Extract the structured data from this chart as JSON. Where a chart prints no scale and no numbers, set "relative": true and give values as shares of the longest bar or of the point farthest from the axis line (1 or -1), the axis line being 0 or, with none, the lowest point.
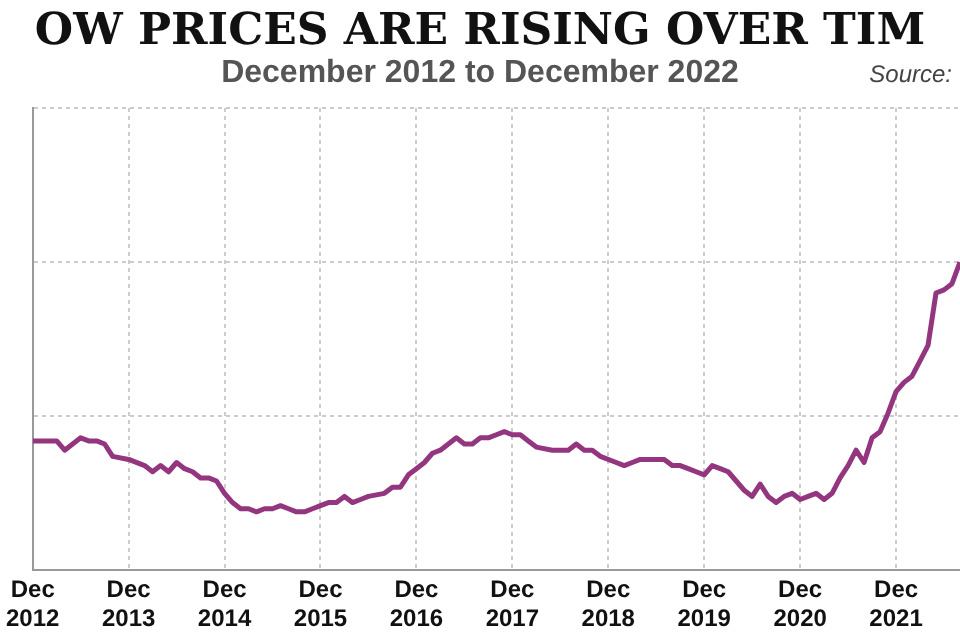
{
  "chart_data": {
    "type": "line",
    "title": "OW PRICES ARE RISING OVER TIM",
    "subtitle": "December 2012 to December 2022",
    "annotations": [
      "Source:"
    ],
    "relative": true,
    "grid": true,
    "line_style": "solid",
    "xlim": [
      "2012-12",
      "2022-08"
    ],
    "xticks": [
      {
        "value": "2012-12",
        "label": "Dec 2012"
      },
      {
        "value": "2013-12",
        "label": "Dec 2013"
      },
      {
        "value": "2014-12",
        "label": "Dec 2014"
      },
      {
        "value": "2015-12",
        "label": "Dec 2015"
      },
      {
        "value": "2016-12",
        "label": "Dec 2016"
      },
      {
        "value": "2017-12",
        "label": "Dec 2017"
      },
      {
        "value": "2018-12",
        "label": "Dec 2018"
      },
      {
        "value": "2019-12",
        "label": "Dec 2019"
      },
      {
        "value": "2020-12",
        "label": "Dec 2020"
      },
      {
        "value": "2021-12",
        "label": "Dec 2021"
      }
    ],
    "series": [
      {
        "color": "#93367f",
        "x": [
          "2012-12",
          "2013-01",
          "2013-03",
          "2013-04",
          "2013-05",
          "2013-06",
          "2013-07",
          "2013-08",
          "2013-09",
          "2013-10",
          "2013-12",
          "2014-02",
          "2014-03",
          "2014-04",
          "2014-05",
          "2014-06",
          "2014-07",
          "2014-08",
          "2014-09",
          "2014-10",
          "2014-11",
          "2014-12",
          "2015-01",
          "2015-02",
          "2015-03",
          "2015-04",
          "2015-05",
          "2015-06",
          "2015-07",
          "2015-08",
          "2015-09",
          "2015-10",
          "2015-11",
          "2015-12",
          "2016-01",
          "2016-02",
          "2016-03",
          "2016-04",
          "2016-05",
          "2016-06",
          "2016-08",
          "2016-09",
          "2016-10",
          "2016-11",
          "2016-12",
          "2017-01",
          "2017-02",
          "2017-03",
          "2017-04",
          "2017-05",
          "2017-06",
          "2017-07",
          "2017-08",
          "2017-09",
          "2017-10",
          "2017-11",
          "2017-12",
          "2018-01",
          "2018-02",
          "2018-03",
          "2018-05",
          "2018-07",
          "2018-08",
          "2018-09",
          "2018-10",
          "2018-11",
          "2019-01",
          "2019-02",
          "2019-03",
          "2019-04",
          "2019-05",
          "2019-07",
          "2019-08",
          "2019-09",
          "2019-10",
          "2019-11",
          "2019-12",
          "2020-01",
          "2020-02",
          "2020-03",
          "2020-04",
          "2020-05",
          "2020-06",
          "2020-07",
          "2020-08",
          "2020-09",
          "2020-10",
          "2020-11",
          "2020-12",
          "2021-01",
          "2021-02",
          "2021-03",
          "2021-04",
          "2021-05",
          "2021-06",
          "2021-07",
          "2021-08",
          "2021-09",
          "2021-10",
          "2021-11",
          "2021-12",
          "2022-01",
          "2022-02",
          "2022-03",
          "2022-04",
          "2022-05",
          "2022-06",
          "2022-07",
          "2022-08"
        ],
        "values": [
          0.42,
          0.42,
          0.42,
          0.39,
          0.41,
          0.43,
          0.42,
          0.42,
          0.41,
          0.37,
          0.36,
          0.34,
          0.32,
          0.34,
          0.32,
          0.35,
          0.33,
          0.32,
          0.3,
          0.3,
          0.29,
          0.25,
          0.22,
          0.2,
          0.2,
          0.19,
          0.2,
          0.2,
          0.21,
          0.2,
          0.19,
          0.19,
          0.2,
          0.21,
          0.22,
          0.22,
          0.24,
          0.22,
          0.23,
          0.24,
          0.25,
          0.27,
          0.27,
          0.31,
          0.33,
          0.35,
          0.38,
          0.39,
          0.41,
          0.43,
          0.41,
          0.41,
          0.43,
          0.43,
          0.44,
          0.45,
          0.44,
          0.44,
          0.42,
          0.4,
          0.39,
          0.39,
          0.41,
          0.39,
          0.39,
          0.37,
          0.35,
          0.34,
          0.35,
          0.36,
          0.36,
          0.36,
          0.34,
          0.34,
          0.33,
          0.32,
          0.31,
          0.34,
          0.33,
          0.32,
          0.29,
          0.26,
          0.24,
          0.28,
          0.24,
          0.22,
          0.24,
          0.25,
          0.23,
          0.24,
          0.25,
          0.23,
          0.25,
          0.3,
          0.34,
          0.39,
          0.35,
          0.43,
          0.45,
          0.51,
          0.58,
          0.61,
          0.63,
          0.68,
          0.73,
          0.9,
          0.91,
          0.93,
          1.0
        ]
      }
    ]
  }
}
